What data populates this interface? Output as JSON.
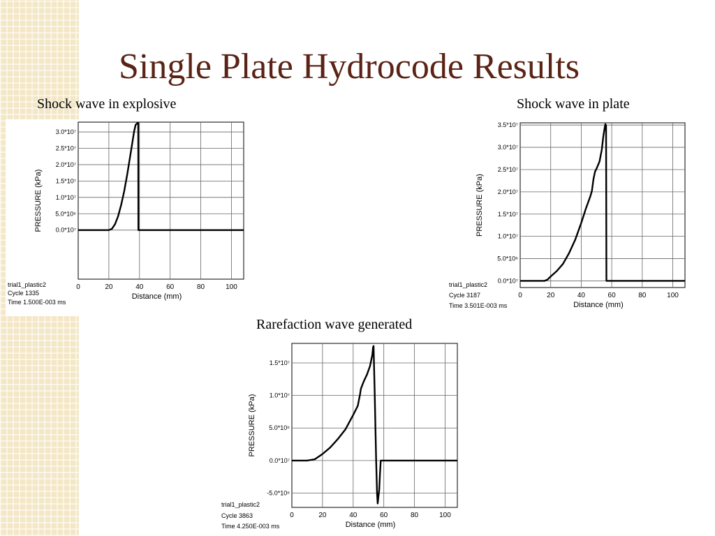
{
  "slide": {
    "title": "Single Plate Hydrocode Results"
  },
  "captions": {
    "explosive": "Shock wave in explosive",
    "plate": "Shock wave in plate",
    "rarefaction": "Rarefaction wave generated"
  },
  "chart_data": [
    {
      "type": "line",
      "title": "Shock wave in explosive",
      "xlabel": "Distance (mm)",
      "ylabel": "PRESSURE  (kPa)",
      "xlim": [
        0,
        108
      ],
      "ylim": [
        -1.5,
        3.3
      ],
      "x_ticks": [
        "0",
        "20",
        "40",
        "60",
        "80",
        "100"
      ],
      "y_ticks": [
        "0.0*10⁷",
        "5.0*10⁶",
        "1.0*10⁷",
        "1.5*10⁷",
        "2.0*10⁷",
        "2.5*10⁷",
        "3.0*10⁷"
      ],
      "grid": true,
      "info": [
        "trial1_plastic2",
        "Cycle 1335",
        "Time 1.500E-003 ms"
      ],
      "series": [
        {
          "x": [
            0,
            20,
            22,
            24,
            26,
            28,
            30,
            32,
            34,
            35.5,
            36.5,
            37.5,
            38.3,
            38.6,
            39.2,
            39.3,
            39.3,
            39.6,
            40,
            60,
            80,
            100,
            108
          ],
          "y": [
            0,
            0,
            0.04,
            0.18,
            0.42,
            0.76,
            1.18,
            1.7,
            2.28,
            2.72,
            3.02,
            3.22,
            3.25,
            3.27,
            3.27,
            0.0,
            0,
            0,
            0,
            0,
            0,
            0,
            0
          ]
        }
      ]
    },
    {
      "type": "line",
      "title": "Shock wave in plate",
      "xlabel": "Distance (mm)",
      "ylabel": "PRESSURE  (kPa)",
      "xlim": [
        0,
        108
      ],
      "ylim": [
        -0.15,
        3.55
      ],
      "x_ticks": [
        "0",
        "20",
        "40",
        "60",
        "80",
        "100"
      ],
      "y_ticks": [
        "0.0*10⁷",
        "5.0*10⁶",
        "1.0*10⁷",
        "1.5*10⁷",
        "2.0*10⁷",
        "2.5*10⁷",
        "3.0*10⁷",
        "3.5*10⁷"
      ],
      "grid": true,
      "info": [
        "trial1_plastic2",
        "Cycle 3187",
        "Time 3.501E-003 ms"
      ],
      "series": [
        {
          "x": [
            0,
            16,
            18,
            20,
            24,
            28,
            32,
            36,
            40,
            43,
            46,
            47,
            48,
            49,
            50,
            52,
            53.5,
            54.5,
            55.3,
            55.8,
            56.2,
            56.3,
            56.5,
            57,
            60,
            80,
            100,
            108
          ],
          "y": [
            0,
            0,
            0.03,
            0.1,
            0.22,
            0.38,
            0.62,
            0.92,
            1.3,
            1.62,
            1.9,
            2.02,
            2.28,
            2.45,
            2.52,
            2.68,
            2.95,
            3.25,
            3.42,
            3.52,
            3.5,
            3.48,
            0.0,
            0,
            0,
            0,
            0,
            0
          ]
        }
      ]
    },
    {
      "type": "line",
      "title": "Rarefaction wave generated",
      "xlabel": "Distance (mm)",
      "ylabel": "PRESSURE  (kPa)",
      "xlim": [
        0,
        108
      ],
      "ylim": [
        -0.72,
        1.8
      ],
      "x_ticks": [
        "0",
        "20",
        "40",
        "60",
        "80",
        "100"
      ],
      "y_ticks": [
        "-5.0*10⁶",
        "0.0*10⁷",
        "5.0*10⁶",
        "1.0*10⁷",
        "1.5*10⁷"
      ],
      "grid": true,
      "info": [
        "trial1_plastic2",
        "Cycle 3863",
        "Time 4.250E-003 ms"
      ],
      "series": [
        {
          "x": [
            0,
            10,
            15,
            20,
            25,
            30,
            35,
            40,
            43,
            44.5,
            45,
            46,
            47,
            49,
            51,
            52.5,
            53,
            53.3,
            54,
            55,
            55.6,
            56,
            57,
            57.5,
            58,
            60,
            80,
            100,
            108
          ],
          "y": [
            0,
            0,
            0.02,
            0.1,
            0.2,
            0.33,
            0.48,
            0.7,
            0.84,
            1.02,
            1.1,
            1.16,
            1.22,
            1.32,
            1.45,
            1.62,
            1.74,
            1.76,
            1.1,
            0.0,
            -0.5,
            -0.66,
            -0.45,
            -0.2,
            0,
            0,
            0,
            0,
            0
          ]
        }
      ]
    }
  ]
}
